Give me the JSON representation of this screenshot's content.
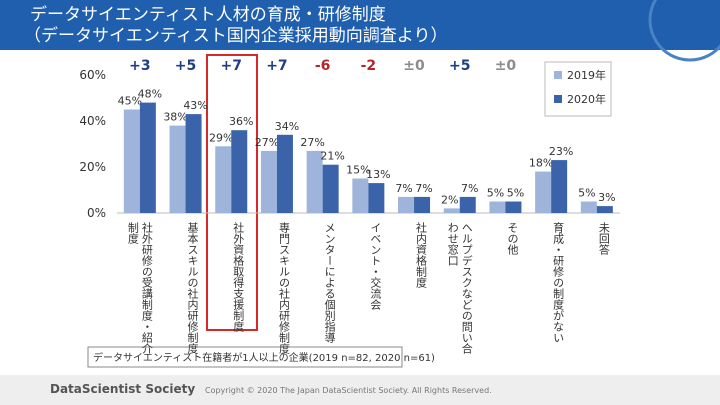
{
  "header": {
    "title_lines": [
      "データサイエンティスト人材の育成・研修制度",
      "（データサイエンティスト国内企業採用動向調査より）"
    ]
  },
  "chart_data": {
    "type": "bar",
    "categories": [
      [
        "社外研修の受講制度・紹介",
        "制度"
      ],
      [
        "基本スキルの社内研修制度"
      ],
      [
        "社外資格取得支援制度"
      ],
      [
        "専門スキルの社内研修制度"
      ],
      [
        "メンターによる個別指導"
      ],
      [
        "イベント・交流会"
      ],
      [
        "社内資格制度"
      ],
      [
        "ヘルプデスクなどの問い合",
        "わせ窓口"
      ],
      [
        "その他"
      ],
      [
        "育成・研修の制度がない"
      ],
      [
        "未回答"
      ]
    ],
    "series": [
      {
        "name": "2019年",
        "color": "#9fb4db",
        "values": [
          45,
          38,
          29,
          27,
          27,
          15,
          7,
          2,
          5,
          18,
          5
        ],
        "value_labels": [
          "45%",
          "38%",
          "29%",
          "27%",
          "27%",
          "15%",
          "7%",
          "2%",
          "5%",
          "18%",
          "5%"
        ]
      },
      {
        "name": "2020年",
        "color": "#3b63aa",
        "values": [
          48,
          43,
          36,
          34,
          21,
          13,
          7,
          7,
          5,
          23,
          3
        ],
        "value_labels": [
          "48%",
          "43%",
          "36%",
          "34%",
          "21%",
          "13%",
          "7%",
          "7%",
          "5%",
          "23%",
          "3%"
        ]
      }
    ],
    "ylim": [
      0,
      60
    ],
    "yticks": [
      {
        "value": 0,
        "label": "0%"
      },
      {
        "value": 20,
        "label": "20%"
      },
      {
        "value": 40,
        "label": "40%"
      },
      {
        "value": 60,
        "label": "60%"
      }
    ],
    "grid": false,
    "legend": "top-right",
    "annotations": [
      {
        "text": "+3",
        "color": "#1f3f85"
      },
      {
        "text": "+5",
        "color": "#1f3f85"
      },
      {
        "text": "+7",
        "color": "#1f3f85"
      },
      {
        "text": "+7",
        "color": "#1f3f85"
      },
      {
        "text": "-6",
        "color": "#b5242a"
      },
      {
        "text": "-2",
        "color": "#b5242a"
      },
      {
        "text": "±0",
        "color": "#8c8c8c"
      },
      {
        "text": "+5",
        "color": "#1f3f85"
      },
      {
        "text": "±0",
        "color": "#8c8c8c"
      }
    ],
    "note": "データサイエンティスト在籍者が1人以上の企業(2019 n=82, 2020 n=61)"
  },
  "footer": {
    "brand": "DataScientist Society",
    "copyright": "Copyright © 2020 The Japan DataScientist Society. All Rights Reserved."
  }
}
